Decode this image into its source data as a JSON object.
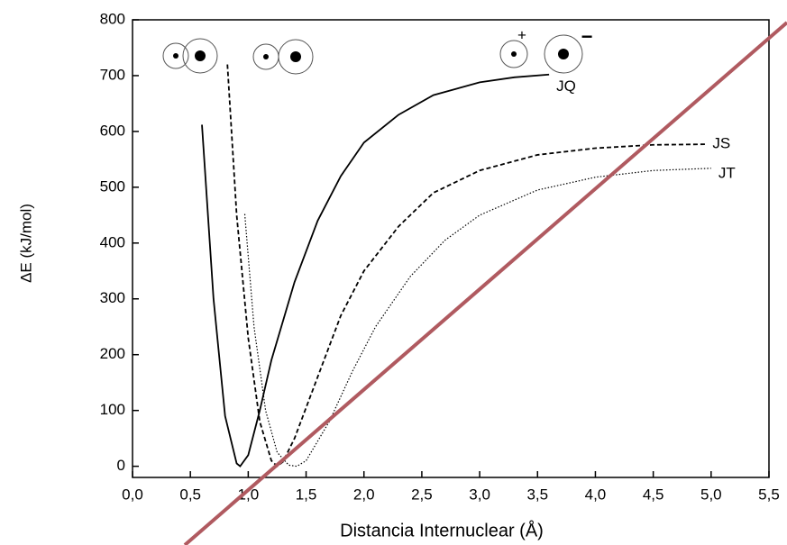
{
  "chart_data": {
    "type": "line",
    "x_label": "Distancia Internuclear (Å)",
    "y_label": "ΔE (kJ/mol)",
    "xlim": [
      0,
      5.5
    ],
    "ylim": [
      -20,
      800
    ],
    "xticks": [
      {
        "value": 0,
        "label": "0,0"
      },
      {
        "value": 0.5,
        "label": "0,5"
      },
      {
        "value": 1,
        "label": "1,0"
      },
      {
        "value": 1.5,
        "label": "1,5"
      },
      {
        "value": 2,
        "label": "2,0"
      },
      {
        "value": 2.5,
        "label": "2,5"
      },
      {
        "value": 3,
        "label": "3,0"
      },
      {
        "value": 3.5,
        "label": "3,5"
      },
      {
        "value": 4,
        "label": "4,0"
      },
      {
        "value": 4.5,
        "label": "4,5"
      },
      {
        "value": 5,
        "label": "5,0"
      },
      {
        "value": 5.5,
        "label": "5,5"
      }
    ],
    "yticks": [
      0,
      100,
      200,
      300,
      400,
      500,
      600,
      700,
      800
    ],
    "annotations": [
      "+",
      "−"
    ],
    "series": [
      {
        "name": "JQ",
        "color": "#000000",
        "line_style": "solid",
        "x": [
          0.6,
          0.7,
          0.8,
          0.9,
          0.93,
          1.0,
          1.1,
          1.2,
          1.4,
          1.6,
          1.8,
          2.0,
          2.3,
          2.6,
          3.0,
          3.3,
          3.6
        ],
        "values": [
          612,
          300,
          90,
          5,
          0,
          20,
          100,
          190,
          330,
          440,
          520,
          580,
          630,
          665,
          688,
          697,
          702
        ]
      },
      {
        "name": "JS",
        "color": "#000000",
        "line_style": "dashed",
        "x": [
          0.82,
          0.9,
          1.0,
          1.1,
          1.2,
          1.25,
          1.3,
          1.4,
          1.6,
          1.8,
          2.0,
          2.3,
          2.6,
          3.0,
          3.5,
          4.0,
          4.5,
          4.95
        ],
        "values": [
          720,
          450,
          230,
          80,
          10,
          0,
          8,
          50,
          160,
          270,
          350,
          430,
          490,
          530,
          558,
          570,
          576,
          577
        ]
      },
      {
        "name": "JT",
        "color": "#000000",
        "line_style": "dotted",
        "x": [
          0.97,
          1.05,
          1.15,
          1.25,
          1.35,
          1.42,
          1.5,
          1.7,
          1.9,
          2.1,
          2.4,
          2.7,
          3.0,
          3.5,
          4.0,
          4.5,
          5.0
        ],
        "values": [
          452,
          250,
          100,
          25,
          2,
          0,
          10,
          80,
          170,
          250,
          340,
          405,
          450,
          495,
          518,
          530,
          534
        ]
      }
    ]
  }
}
